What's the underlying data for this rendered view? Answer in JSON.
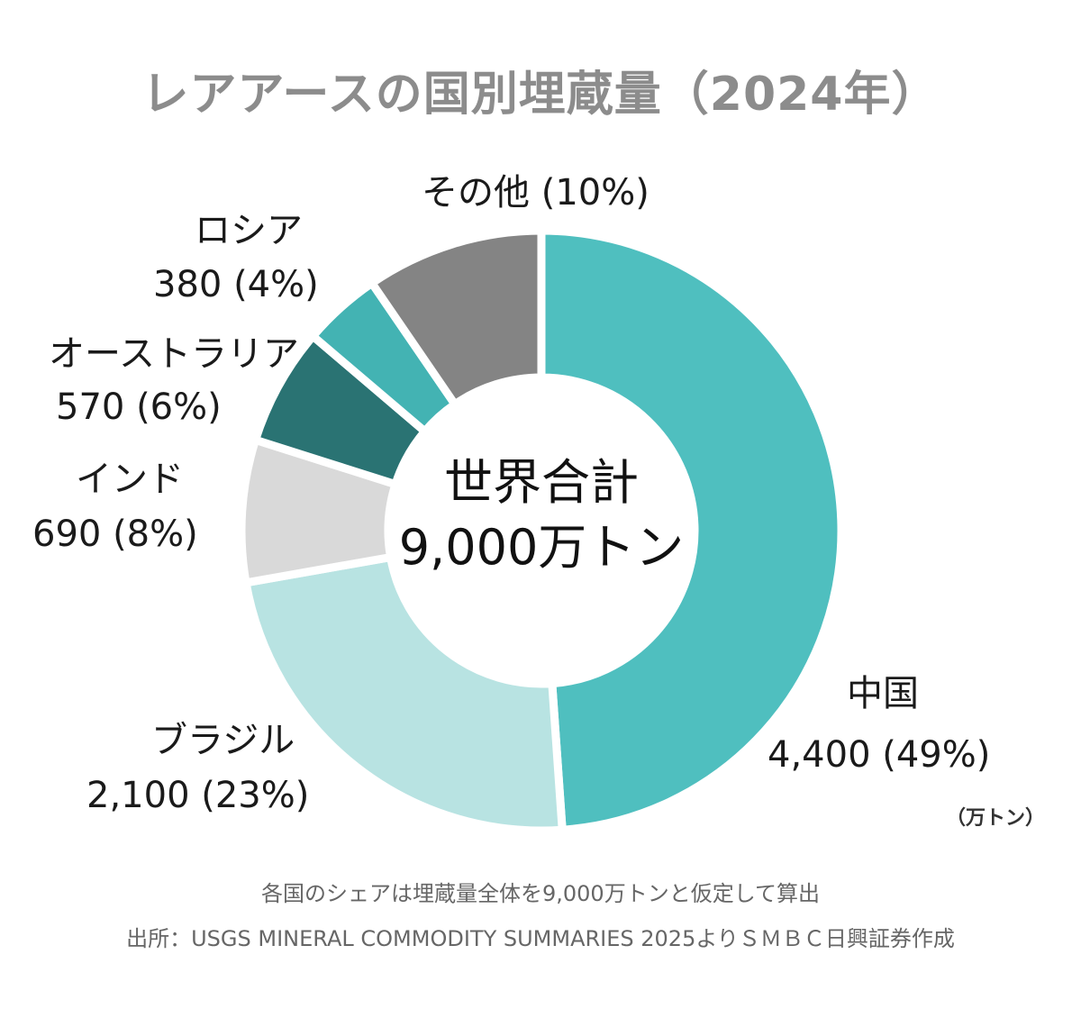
{
  "title": "レアアースの国別埋蔵量（2024年）",
  "center": {
    "line1": "世界合計",
    "line2": "9,000万トン"
  },
  "unit_note": "（万トン）",
  "footnote": "各国のシェアは埋蔵量全体を9,000万トンと仮定して算出",
  "source": "出所：USGS MINERAL COMMODITY SUMMARIES 2025よりＳＭＢＣ日興証券作成",
  "chart_data": {
    "type": "pie",
    "variant": "donut",
    "title": "レアアースの国別埋蔵量（2024年）",
    "total": 9000,
    "unit": "万トン",
    "slices": [
      {
        "name": "中国",
        "value": 4400,
        "share_label": "4,400 (49%)",
        "percent": 49,
        "color": "#4fbfbf"
      },
      {
        "name": "ブラジル",
        "value": 2100,
        "share_label": "2,100 (23%)",
        "percent": 23,
        "color": "#b8e3e2"
      },
      {
        "name": "インド",
        "value": 690,
        "share_label": "690 (8%)",
        "percent": 8,
        "color": "#d9d9d9"
      },
      {
        "name": "オーストラリア",
        "value": 570,
        "share_label": "570 (6%)",
        "percent": 6,
        "color": "#2a7373"
      },
      {
        "name": "ロシア",
        "value": 380,
        "share_label": "380 (4%)",
        "percent": 4,
        "color": "#43b3b3"
      },
      {
        "name": "その他",
        "value": 860,
        "share_label": "その他 (10%)",
        "percent": 10,
        "color": "#848484"
      }
    ]
  }
}
